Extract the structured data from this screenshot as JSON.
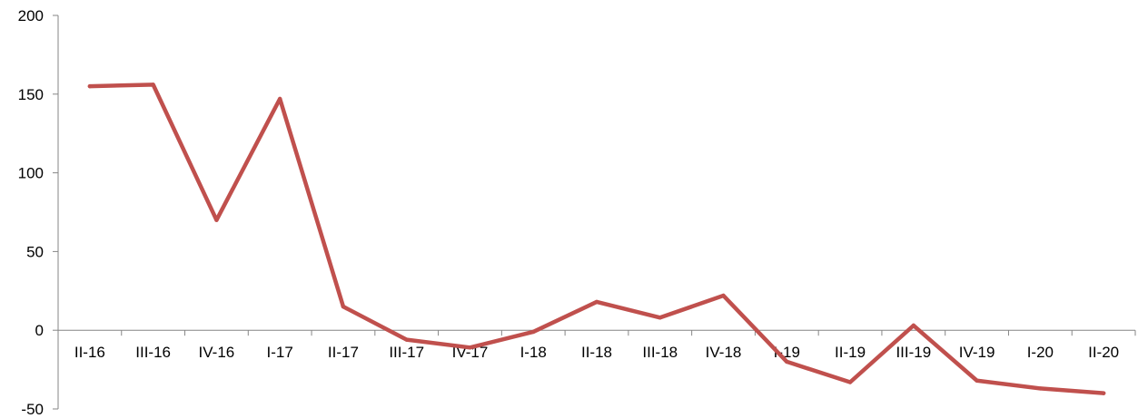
{
  "chart_data": {
    "type": "line",
    "categories": [
      "II-16",
      "III-16",
      "IV-16",
      "I-17",
      "II-17",
      "III-17",
      "IV-17",
      "I-18",
      "II-18",
      "III-18",
      "IV-18",
      "I-19",
      "II-19",
      "III-19",
      "IV-19",
      "I-20",
      "II-20"
    ],
    "series": [
      {
        "values": [
          155,
          156,
          70,
          147,
          15,
          -6,
          -11,
          -1,
          18,
          8,
          22,
          -20,
          -33,
          3,
          -32,
          -37,
          -40
        ],
        "color": "#c0504d"
      }
    ],
    "y_ticks": [
      "200",
      "150",
      "100",
      "50",
      "0",
      "-50"
    ],
    "ylim": [
      -50,
      200
    ],
    "grid": false,
    "legend": "none"
  }
}
